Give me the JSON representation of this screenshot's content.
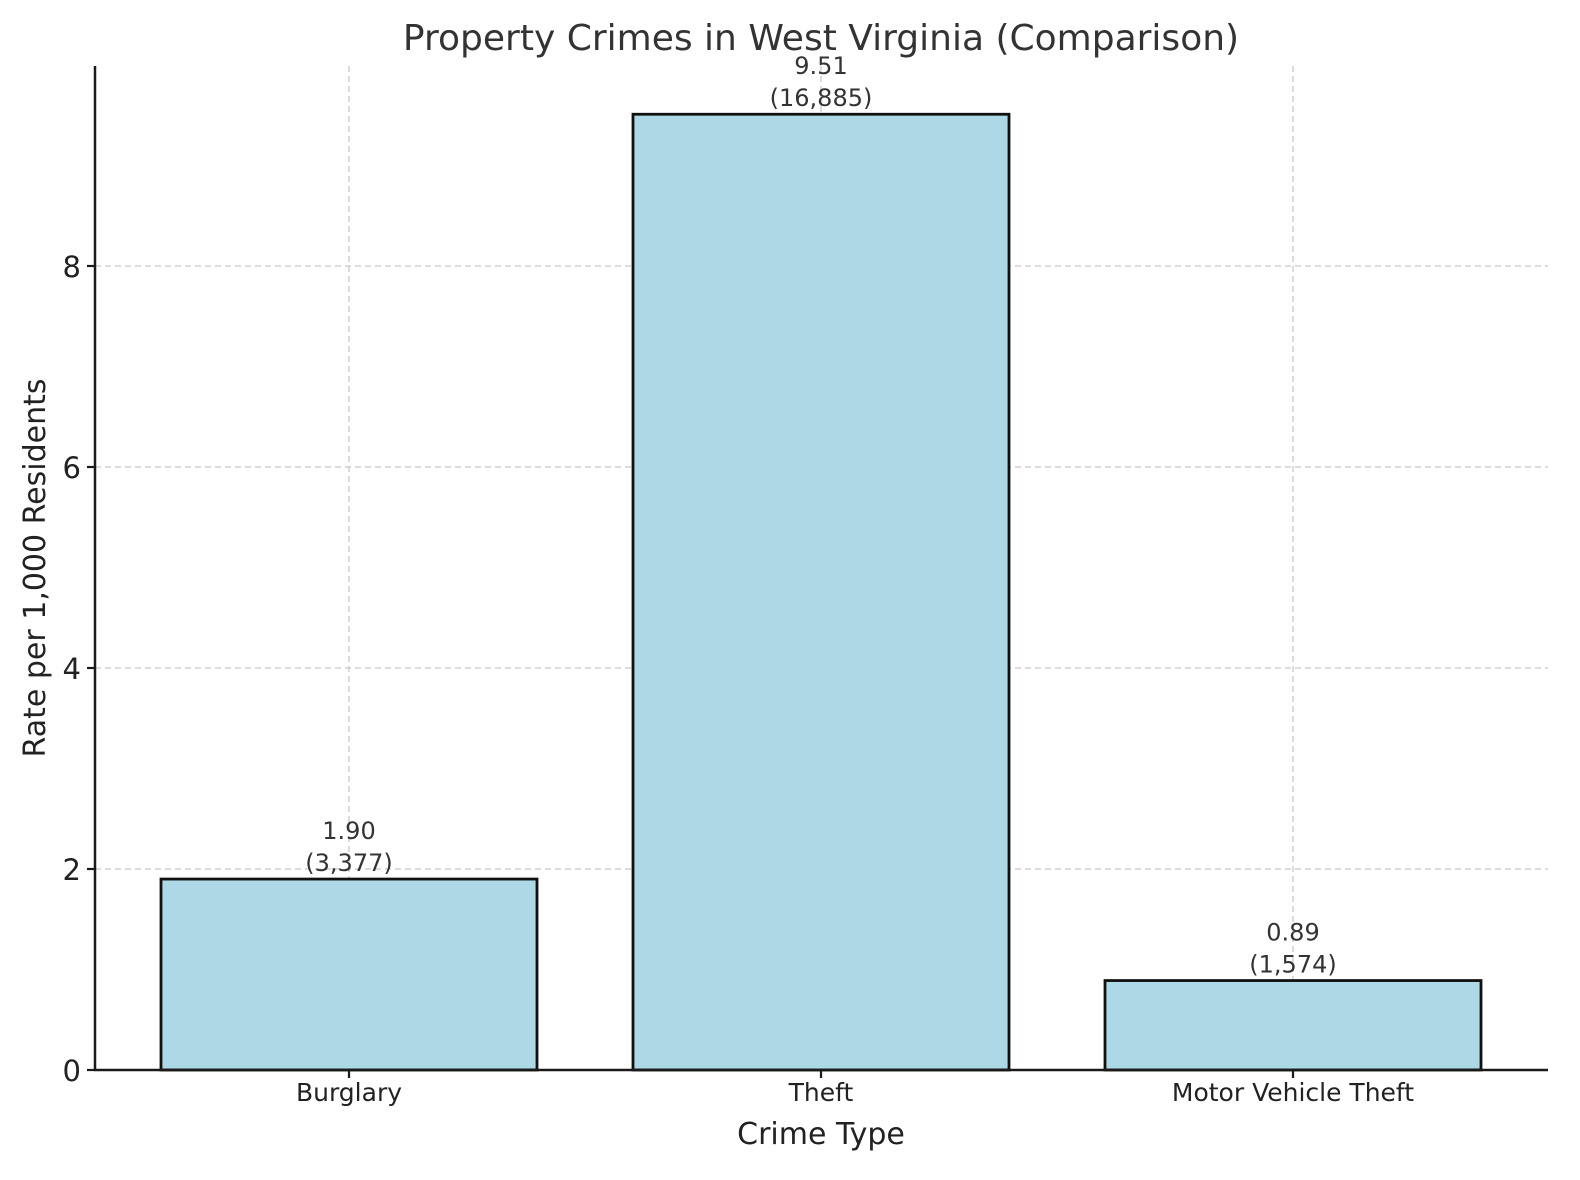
{
  "chart_data": {
    "type": "bar",
    "title": "Property Crimes in West Virginia (Comparison)",
    "xlabel": "Crime Type",
    "ylabel": "Rate per 1,000 Residents",
    "categories": [
      "Burglary",
      "Theft",
      "Motor Vehicle Theft"
    ],
    "values": [
      1.9,
      9.51,
      0.89
    ],
    "counts": [
      3377,
      16885,
      1574
    ],
    "bar_labels": [
      {
        "rate": "1.90",
        "count": "(3,377)"
      },
      {
        "rate": "9.51",
        "count": "(16,885)"
      },
      {
        "rate": "0.89",
        "count": "(1,574)"
      }
    ],
    "yticks": [
      0,
      2,
      4,
      6,
      8
    ],
    "ylim": [
      0,
      9.98
    ],
    "grid": true,
    "legend": null,
    "colors": {
      "bar_fill": "#add8e6",
      "bar_edge": "#111111",
      "grid": "#c8c8c8",
      "text": "#333333"
    }
  }
}
